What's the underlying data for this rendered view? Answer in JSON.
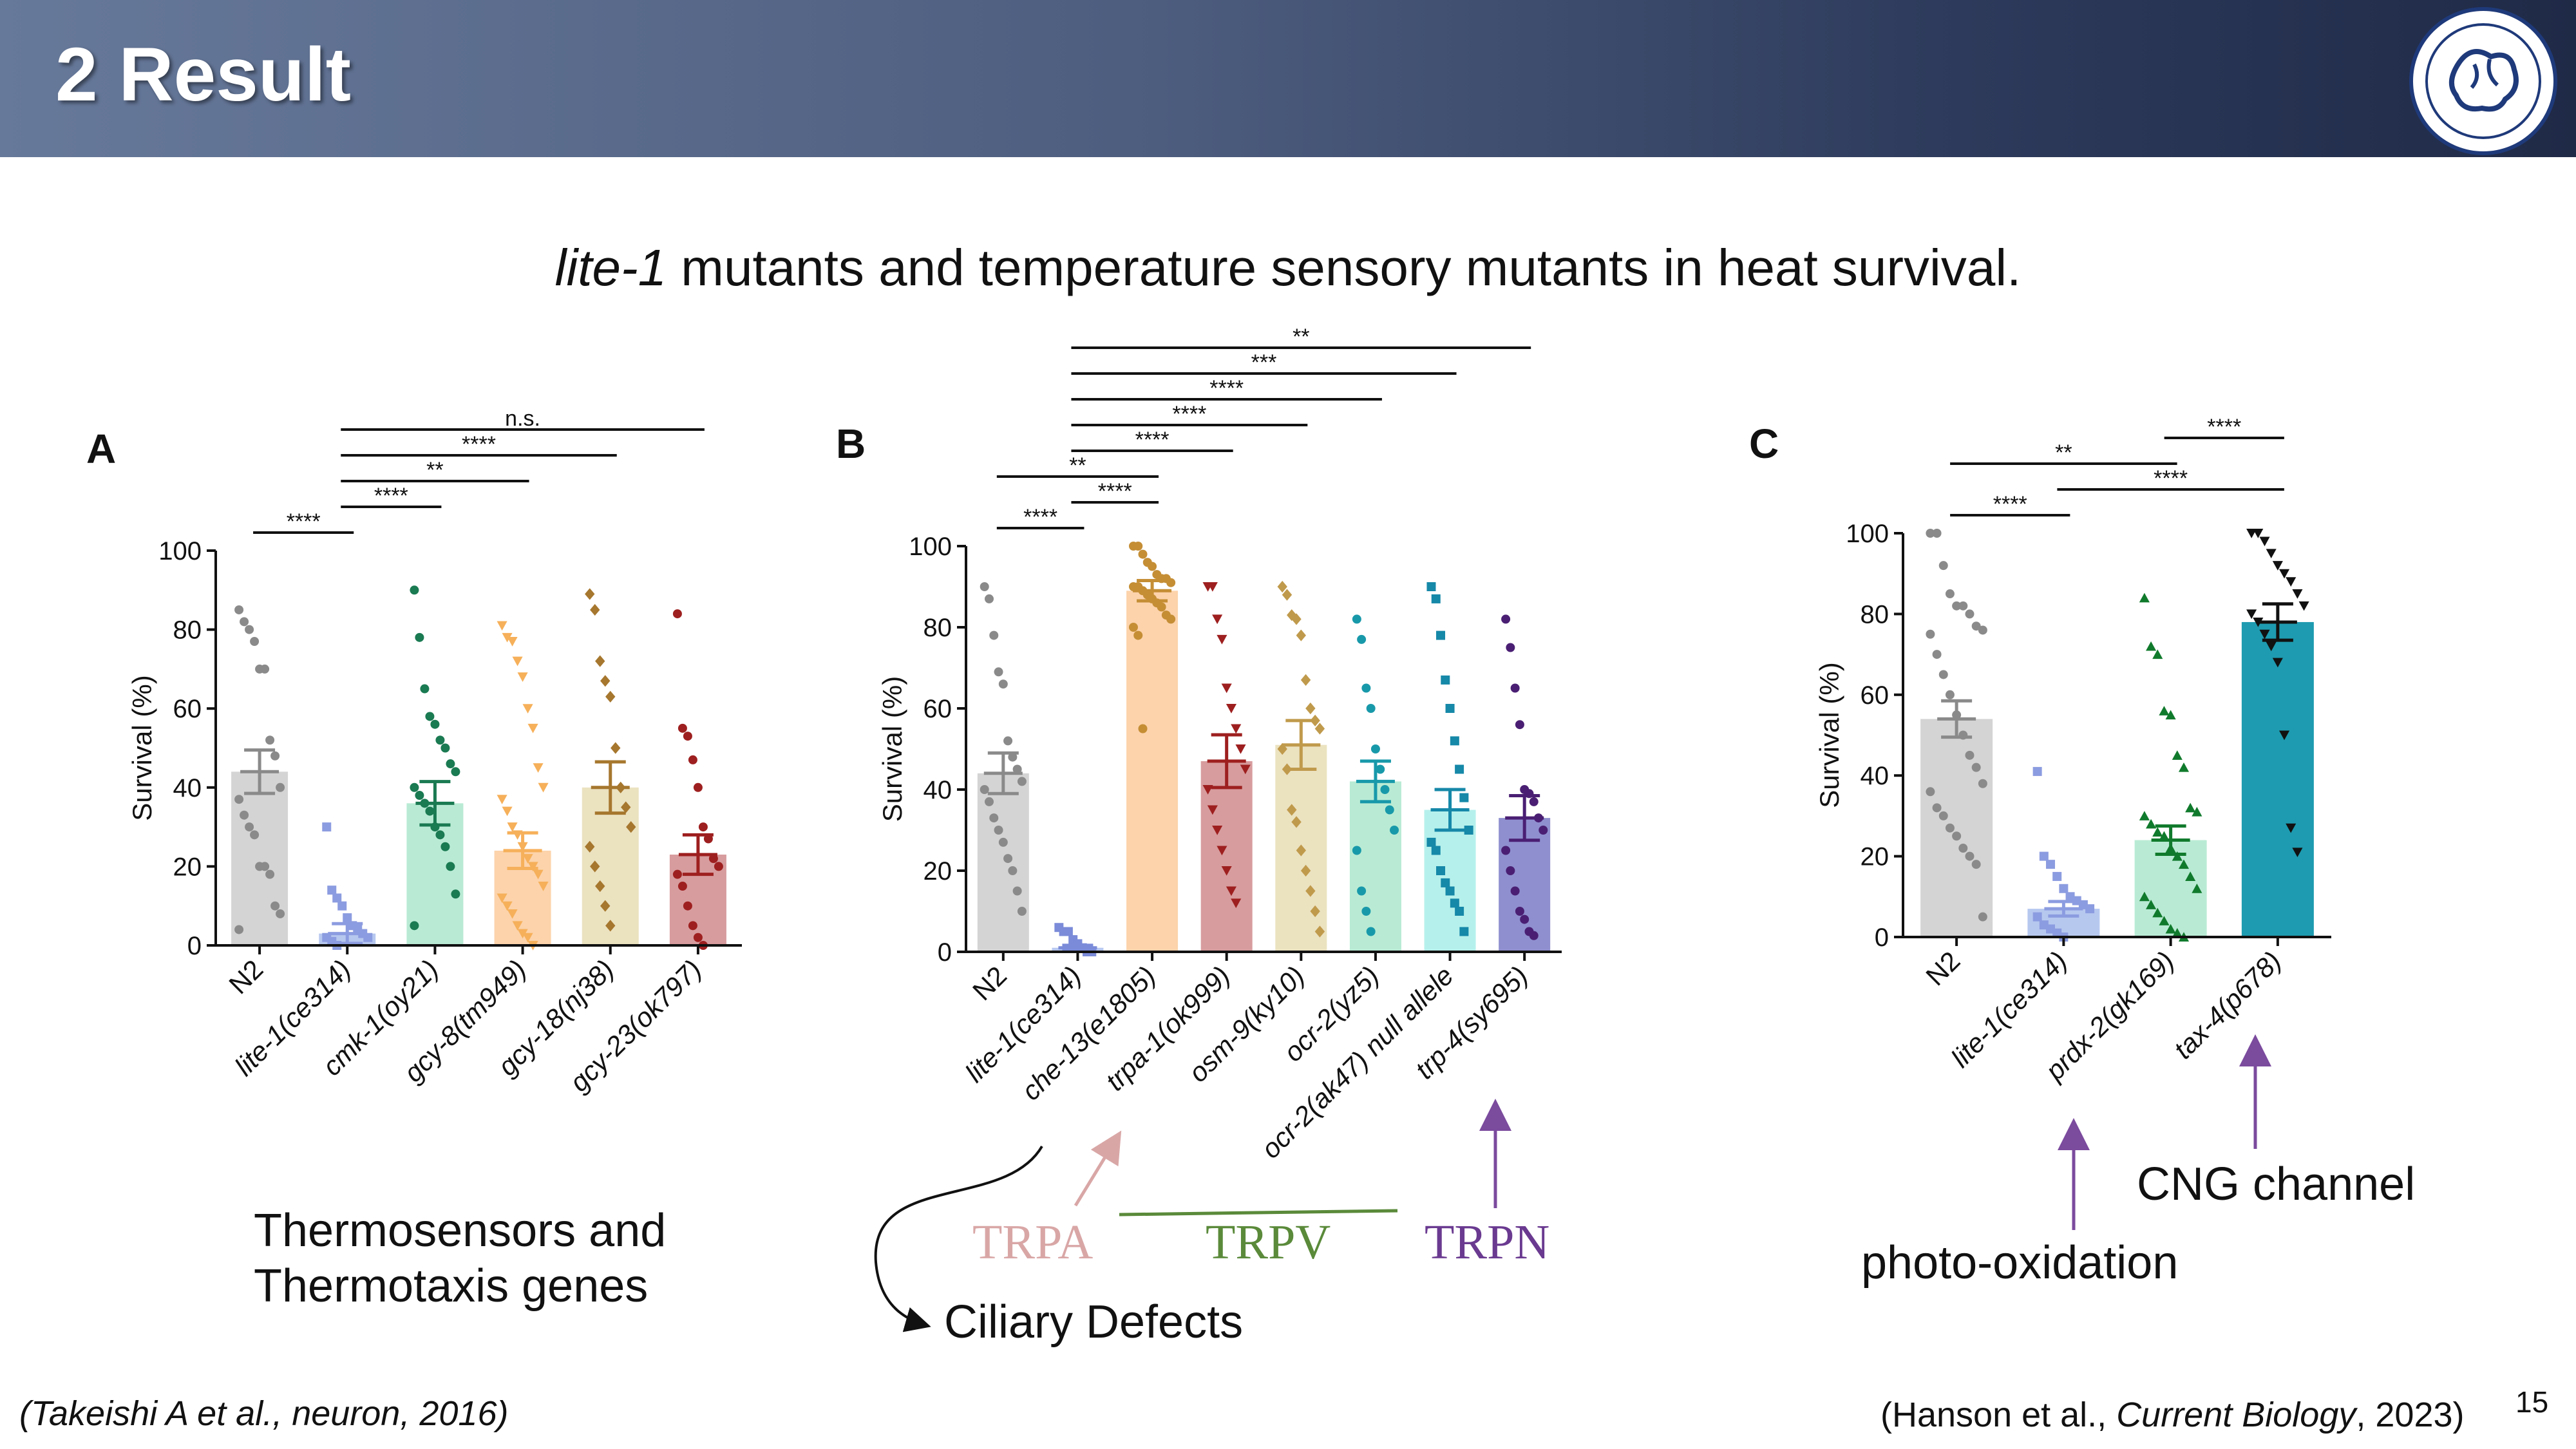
{
  "header": {
    "title": "2 Result"
  },
  "main_title": {
    "italic": "lite-1",
    "rest": " mutants and temperature sensory mutants in heat survival."
  },
  "chart_data": [
    {
      "panel": "A",
      "type": "bar",
      "ylabel": "Survival (%)",
      "ylim": [
        0,
        100
      ],
      "yticks": [
        "0",
        "20",
        "40",
        "60",
        "80",
        "100"
      ],
      "categories": [
        "N2",
        "lite-1(ce314)",
        "cmk-1(oy21)",
        "gcy-8(tm949)",
        "gcy-18(nj38)",
        "gcy-23(ok797)"
      ],
      "values": [
        44,
        3,
        36,
        24,
        40,
        23
      ],
      "sem": [
        5.5,
        2.5,
        5.5,
        4.5,
        6.5,
        5
      ],
      "colors": [
        "#d4d4d4",
        "#b7c8ef",
        "#b9ebd4",
        "#fcd3ab",
        "#ebe2c0",
        "#d79c9e"
      ],
      "dot_colors": [
        "#8a8a8a",
        "#8c9ce0",
        "#1a7a52",
        "#f6b05a",
        "#a6772e",
        "#9e1f1f"
      ],
      "markers": [
        "circle",
        "square",
        "circle",
        "triangle-down",
        "diamond",
        "circle"
      ],
      "points": [
        [
          85,
          82,
          80,
          77,
          70,
          70,
          52,
          48,
          40,
          37,
          33,
          30,
          28,
          20,
          20,
          18,
          10,
          8,
          4
        ],
        [
          30,
          14,
          12,
          10,
          7,
          5,
          4,
          3,
          2,
          2,
          1,
          0
        ],
        [
          90,
          78,
          65,
          58,
          56,
          52,
          50,
          46,
          44,
          40,
          38,
          36,
          34,
          30,
          28,
          25,
          20,
          13,
          5
        ],
        [
          81,
          78,
          77,
          72,
          68,
          60,
          55,
          45,
          40,
          37,
          34,
          30,
          28,
          25,
          22,
          20,
          18,
          15,
          12,
          10,
          8,
          5,
          3,
          2,
          0
        ],
        [
          89,
          85,
          72,
          67,
          63,
          50,
          40,
          35,
          30,
          25,
          20,
          15,
          10,
          5
        ],
        [
          84,
          55,
          53,
          47,
          40,
          30,
          27,
          22,
          20,
          18,
          15,
          10,
          5,
          2,
          0
        ]
      ],
      "significance": [
        {
          "from": 0,
          "to": 1,
          "label": "****"
        },
        {
          "from": 1,
          "to": 2,
          "label": "****"
        },
        {
          "from": 1,
          "to": 3,
          "label": "**"
        },
        {
          "from": 1,
          "to": 4,
          "label": "****"
        },
        {
          "from": 1,
          "to": 5,
          "label": "n.s."
        }
      ]
    },
    {
      "panel": "B",
      "type": "bar",
      "ylabel": "Survival (%)",
      "ylim": [
        0,
        100
      ],
      "yticks": [
        "0",
        "20",
        "40",
        "60",
        "80",
        "100"
      ],
      "categories": [
        "N2",
        "lite-1(ce314)",
        "che-13(e1805)",
        "trpa-1(ok999)",
        "osm-9(ky10)",
        "ocr-2(yz5)",
        "ocr-2(ak47) null allele",
        "trp-4(sy695)"
      ],
      "values": [
        44,
        1,
        89,
        47,
        51,
        42,
        35,
        33
      ],
      "sem": [
        5,
        0.6,
        2.5,
        6.5,
        6,
        5,
        5,
        5.5
      ],
      "colors": [
        "#d4d4d4",
        "#b7c8ef",
        "#fcd3ab",
        "#d79c9e",
        "#ebe2c0",
        "#b9ebd4",
        "#b6f0ec",
        "#8f8fcf"
      ],
      "dot_colors": [
        "#8a8a8a",
        "#7b8bd9",
        "#c58e35",
        "#9e1f1f",
        "#c09a4c",
        "#1899aa",
        "#1688a8",
        "#4a1f73"
      ],
      "markers": [
        "circle",
        "square",
        "circle",
        "triangle-down",
        "diamond",
        "circle",
        "square",
        "circle"
      ],
      "points": [
        [
          90,
          87,
          78,
          69,
          66,
          52,
          48,
          45,
          42,
          40,
          37,
          33,
          30,
          27,
          23,
          20,
          15,
          10
        ],
        [
          6,
          5,
          5,
          3,
          2,
          1,
          0,
          0
        ],
        [
          100,
          100,
          98,
          96,
          95,
          93,
          92,
          92,
          91,
          90,
          90,
          89,
          88,
          87,
          86,
          85,
          83,
          82,
          80,
          78,
          55
        ],
        [
          90,
          90,
          82,
          77,
          65,
          60,
          55,
          50,
          45,
          40,
          35,
          30,
          25,
          20,
          15,
          12
        ],
        [
          90,
          88,
          83,
          82,
          78,
          67,
          60,
          57,
          55,
          50,
          45,
          35,
          32,
          25,
          20,
          15,
          10,
          5
        ],
        [
          82,
          77,
          65,
          60,
          50,
          45,
          40,
          35,
          30,
          25,
          15,
          10,
          5
        ],
        [
          90,
          87,
          78,
          67,
          60,
          52,
          45,
          38,
          30,
          27,
          25,
          20,
          17,
          15,
          12,
          10,
          5
        ],
        [
          82,
          75,
          65,
          56,
          40,
          39,
          37,
          33,
          30,
          25,
          20,
          15,
          10,
          8,
          5,
          4
        ]
      ],
      "significance": [
        {
          "from": 0,
          "to": 1,
          "label": "****"
        },
        {
          "from": 1,
          "to": 2,
          "label": "****"
        },
        {
          "from": 0,
          "to": 2,
          "label": "**"
        },
        {
          "from": 1,
          "to": 3,
          "label": "****"
        },
        {
          "from": 1,
          "to": 4,
          "label": "****"
        },
        {
          "from": 1,
          "to": 5,
          "label": "****"
        },
        {
          "from": 1,
          "to": 6,
          "label": "***"
        },
        {
          "from": 1,
          "to": 7,
          "label": "**"
        }
      ]
    },
    {
      "panel": "C",
      "type": "bar",
      "ylabel": "Survival (%)",
      "ylim": [
        0,
        100
      ],
      "yticks": [
        "0",
        "20",
        "40",
        "60",
        "80",
        "100"
      ],
      "categories": [
        "N2",
        "lite-1(ce314)",
        "prdx-2(gk169)",
        "tax-4(p678)"
      ],
      "values": [
        54,
        7,
        24,
        78
      ],
      "sem": [
        4.5,
        1.8,
        3.5,
        4.5
      ],
      "colors": [
        "#d4d4d4",
        "#b7c8ef",
        "#b9ebd4",
        "#1e9bb0"
      ],
      "dot_colors": [
        "#8a8a8a",
        "#8c9ce0",
        "#107a2c",
        "#111111"
      ],
      "markers": [
        "circle",
        "square",
        "triangle-up",
        "triangle-down"
      ],
      "points": [
        [
          100,
          100,
          92,
          85,
          82,
          82,
          80,
          77,
          76,
          75,
          70,
          65,
          60,
          55,
          50,
          45,
          42,
          38,
          36,
          32,
          30,
          27,
          25,
          22,
          20,
          18,
          5
        ],
        [
          41,
          20,
          18,
          15,
          12,
          10,
          9,
          8,
          7,
          5,
          3,
          2,
          1,
          0
        ],
        [
          84,
          72,
          70,
          56,
          55,
          45,
          42,
          32,
          31,
          30,
          28,
          26,
          25,
          22,
          20,
          18,
          15,
          12,
          10,
          8,
          6,
          4,
          2,
          1,
          0
        ],
        [
          100,
          100,
          98,
          95,
          92,
          90,
          88,
          85,
          82,
          80,
          78,
          75,
          72,
          68,
          50,
          27,
          21
        ]
      ],
      "significance": [
        {
          "from": 0,
          "to": 1,
          "label": "****"
        },
        {
          "from": 1,
          "to": 3,
          "label": "****"
        },
        {
          "from": 0,
          "to": 2,
          "label": "**"
        },
        {
          "from": 2,
          "to": 3,
          "label": "****"
        }
      ]
    }
  ],
  "annotations": {
    "thermosensors": "Thermosensors and\nThermotaxis genes",
    "trpa": "TRPA",
    "trpv": "TRPV",
    "trpn": "TRPN",
    "ciliary": "Ciliary Defects",
    "cng": "CNG channel",
    "photo": "photo-oxidation"
  },
  "colors": {
    "trpa": "#d9a6a6",
    "trpv": "#5a8a3a",
    "trpn": "#6a3a90",
    "arrow_purple": "#7b4b9e"
  },
  "citations": {
    "left": "(Takeishi A et al., neuron, 2016)",
    "right_prefix": "(Hanson et al., ",
    "right_journal": "Current Biology",
    "right_suffix": ", 2023)"
  },
  "page_number": "15"
}
